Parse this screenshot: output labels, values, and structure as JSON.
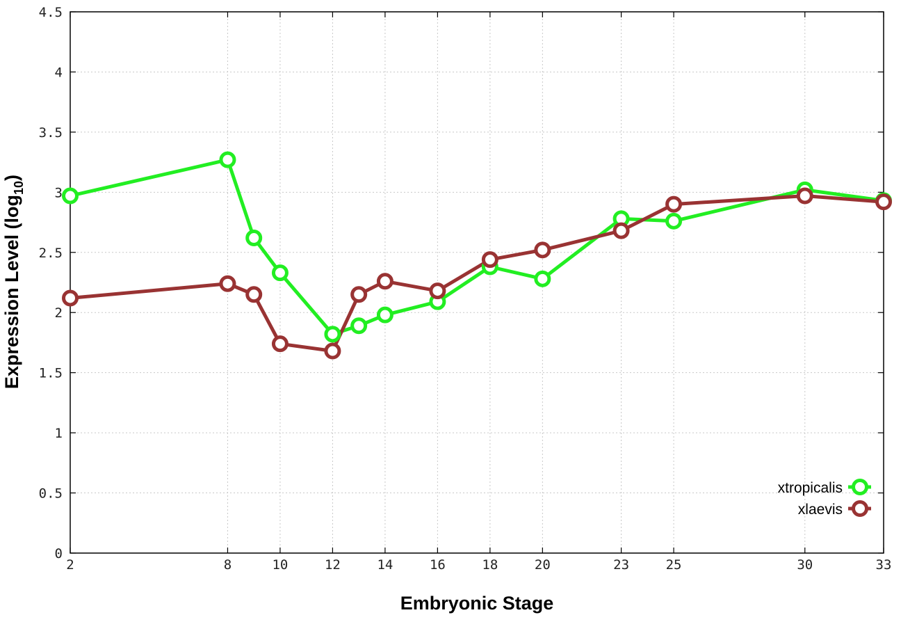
{
  "chart_data": {
    "type": "line",
    "x_ticks": [
      2,
      8,
      10,
      12,
      14,
      16,
      18,
      20,
      23,
      25,
      30,
      33
    ],
    "y_ticks": [
      "0",
      "0.5",
      "1",
      "1.5",
      "2",
      "2.5",
      "3",
      "3.5",
      "4",
      "4.5"
    ],
    "xlabel": "Embryonic Stage",
    "ylabel_main": "Expression Level (log",
    "ylabel_sub": "10",
    "ylabel_close": ")",
    "ylim": [
      0,
      4.5
    ],
    "grid": true,
    "legend_position": "bottom-right",
    "series": [
      {
        "name": "xtropicalis",
        "color": "#22ee22",
        "points": [
          [
            2,
            2.97
          ],
          [
            8,
            3.27
          ],
          [
            9,
            2.62
          ],
          [
            10,
            2.33
          ],
          [
            12,
            1.82
          ],
          [
            13,
            1.89
          ],
          [
            14,
            1.98
          ],
          [
            16,
            2.09
          ],
          [
            18,
            2.38
          ],
          [
            20,
            2.28
          ],
          [
            23,
            2.78
          ],
          [
            25,
            2.76
          ],
          [
            30,
            3.02
          ],
          [
            33,
            2.93
          ]
        ]
      },
      {
        "name": "xlaevis",
        "color": "#993333",
        "points": [
          [
            2,
            2.12
          ],
          [
            8,
            2.24
          ],
          [
            9,
            2.15
          ],
          [
            10,
            1.74
          ],
          [
            12,
            1.68
          ],
          [
            13,
            2.15
          ],
          [
            14,
            2.26
          ],
          [
            16,
            2.18
          ],
          [
            18,
            2.44
          ],
          [
            20,
            2.52
          ],
          [
            23,
            2.68
          ],
          [
            25,
            2.9
          ],
          [
            30,
            2.97
          ],
          [
            33,
            2.92
          ]
        ]
      }
    ]
  }
}
